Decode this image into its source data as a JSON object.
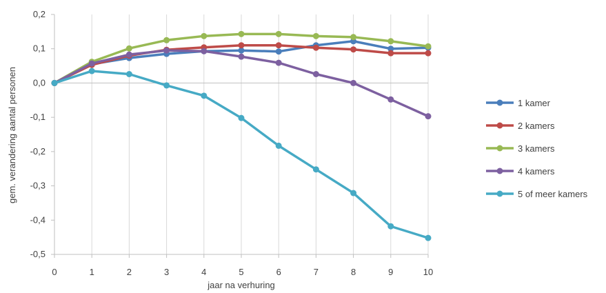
{
  "chart_data": {
    "type": "line",
    "xlabel": "jaar na verhuring",
    "ylabel": "gem. verandering aantal personen",
    "x": [
      0,
      1,
      2,
      3,
      4,
      5,
      6,
      7,
      8,
      9,
      10
    ],
    "x_ticks": [
      "0",
      "1",
      "2",
      "3",
      "4",
      "5",
      "6",
      "7",
      "8",
      "9",
      "10"
    ],
    "ylim": [
      -0.5,
      0.2
    ],
    "y_ticks": [
      0.2,
      0.1,
      0.0,
      -0.1,
      -0.2,
      -0.3,
      -0.4,
      -0.5
    ],
    "y_tick_labels": [
      "0,2",
      "0,1",
      "0,0",
      "-0,1",
      "-0,2",
      "-0,3",
      "-0,4",
      "-0,5"
    ],
    "grid": "vertical",
    "legend_position": "right",
    "series": [
      {
        "name": "1 kamer",
        "color": "#4a7ebb",
        "values": [
          0,
          0.055,
          0.073,
          0.085,
          0.093,
          0.095,
          0.092,
          0.11,
          0.122,
          0.1,
          0.103
        ]
      },
      {
        "name": "2 kamers",
        "color": "#be4b48",
        "values": [
          0,
          0.053,
          0.08,
          0.097,
          0.104,
          0.11,
          0.11,
          0.103,
          0.098,
          0.087,
          0.087
        ]
      },
      {
        "name": "3 kamers",
        "color": "#98b954",
        "values": [
          0,
          0.062,
          0.101,
          0.125,
          0.137,
          0.143,
          0.143,
          0.137,
          0.134,
          0.122,
          0.107
        ]
      },
      {
        "name": "4 kamers",
        "color": "#7d60a0",
        "values": [
          0,
          0.057,
          0.083,
          0.095,
          0.093,
          0.077,
          0.059,
          0.026,
          0.0,
          -0.048,
          -0.097
        ]
      },
      {
        "name": "5 of meer kamers",
        "color": "#46aac5",
        "values": [
          0,
          0.035,
          0.026,
          -0.007,
          -0.037,
          -0.102,
          -0.183,
          -0.252,
          -0.321,
          -0.418,
          -0.452
        ]
      }
    ]
  }
}
